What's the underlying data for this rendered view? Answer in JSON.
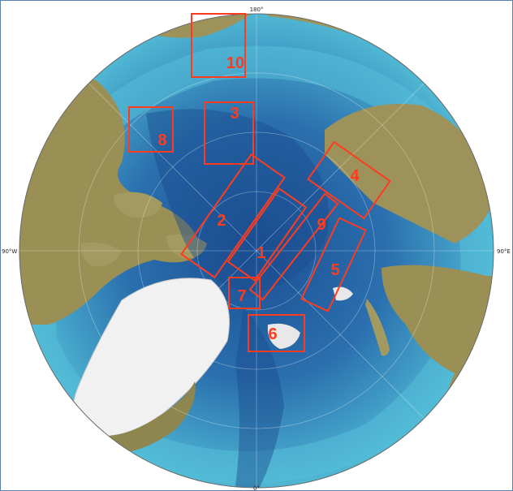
{
  "map": {
    "boxes": [
      {
        "label": "1"
      },
      {
        "label": "2"
      },
      {
        "label": "3"
      },
      {
        "label": "4"
      },
      {
        "label": "5"
      },
      {
        "label": "6"
      },
      {
        "label": "7"
      },
      {
        "label": "8"
      },
      {
        "label": "9"
      },
      {
        "label": "10"
      }
    ],
    "longitude_labels": {
      "top": "180°",
      "right": "90°E",
      "bottom": "0°",
      "left": "90°W"
    },
    "colors": {
      "deep_basin": "#1f5fa0",
      "shelf_water": "#47b3d1",
      "land": "#9a8f55",
      "ice_sheet": "#f2f2f2",
      "box_stroke": "#ff3b1f"
    }
  }
}
